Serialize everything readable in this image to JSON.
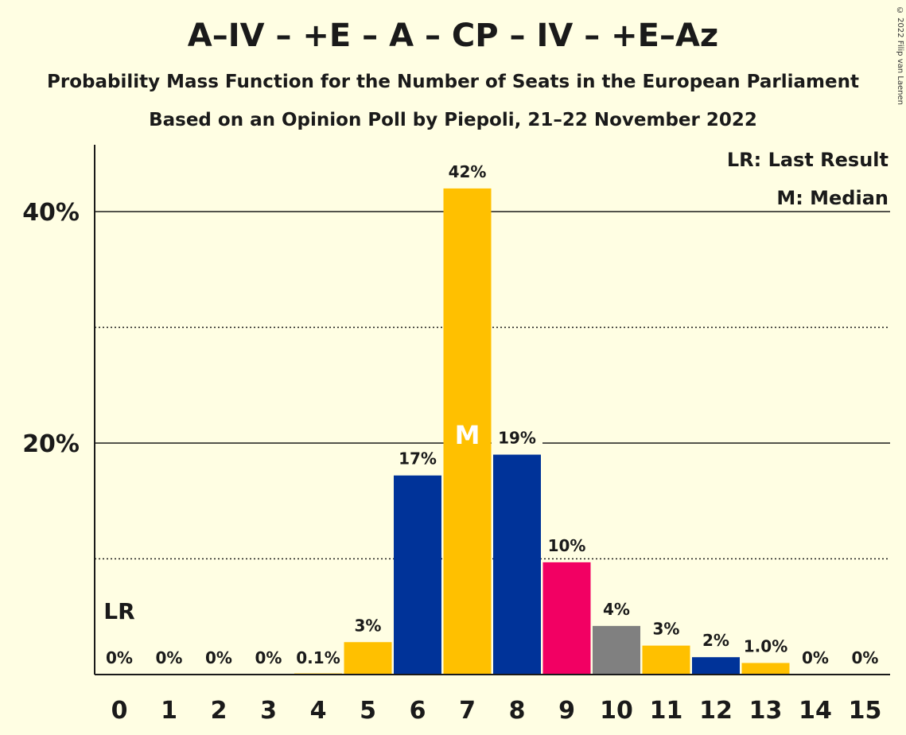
{
  "header": {
    "title": "A–IV – +E – A – CP – IV – +E–Az",
    "subtitle1": "Probability Mass Function for the Number of Seats in the European Parliament",
    "subtitle2": "Based on an Opinion Poll by Piepoli, 21–22 November 2022",
    "copyright": "© 2022 Filip van Laenen"
  },
  "legend": {
    "last_result": "LR: Last Result",
    "median": "M: Median"
  },
  "markers": {
    "last_result_label": "LR",
    "last_result_seat": 0,
    "median_label": "M",
    "median_seat": 7
  },
  "chart_data": {
    "type": "bar",
    "categories": [
      "0",
      "1",
      "2",
      "3",
      "4",
      "5",
      "6",
      "7",
      "8",
      "9",
      "10",
      "11",
      "12",
      "13",
      "14",
      "15"
    ],
    "values": [
      0,
      0,
      0,
      0,
      0.1,
      2.8,
      17.2,
      42.0,
      19.0,
      9.7,
      4.2,
      2.5,
      1.5,
      1.0,
      0,
      0
    ],
    "value_labels": [
      "0%",
      "0%",
      "0%",
      "0%",
      "0.1%",
      "3%",
      "17%",
      "42%",
      "19%",
      "10%",
      "4%",
      "3%",
      "2%",
      "1.0%",
      "0%",
      "0%"
    ],
    "colors": [
      "#FFC000",
      "#FFC000",
      "#FFC000",
      "#FFC000",
      "#FFC000",
      "#FFC000",
      "#003399",
      "#FFC000",
      "#003399",
      "#F20063",
      "#808080",
      "#FFC000",
      "#003399",
      "#FFC000",
      "#FFC000",
      "#FFC000"
    ],
    "y_ticks": [
      20,
      40
    ],
    "y_tick_labels": [
      "20%",
      "40%"
    ],
    "minor_gridlines": [
      10,
      30
    ],
    "ylim": [
      0,
      46
    ],
    "xlabel": "",
    "ylabel": "",
    "legend_position": "top-right"
  }
}
